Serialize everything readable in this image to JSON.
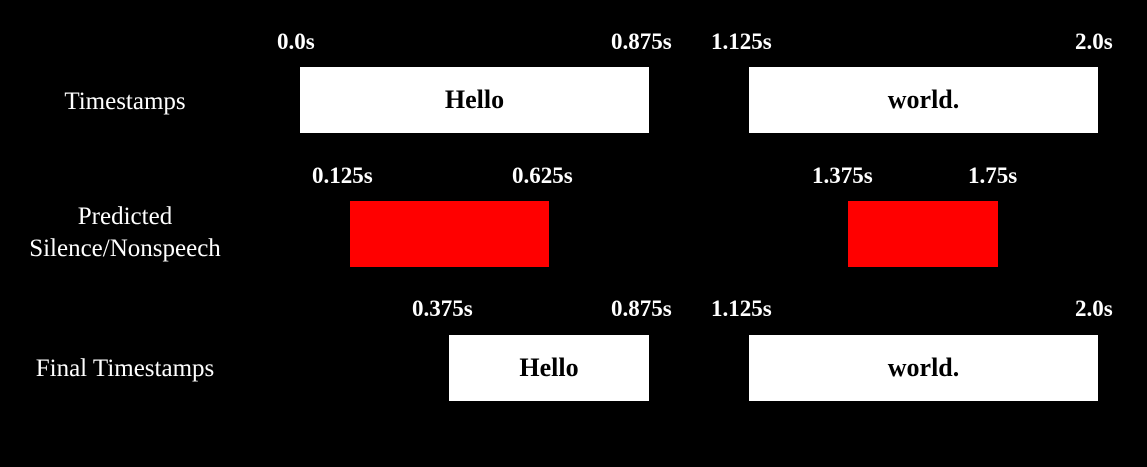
{
  "colors": {
    "background": "#000000",
    "word_block": "#ffffff",
    "silence_block": "#ff0000",
    "text_on_dark": "#ffffff",
    "text_on_block": "#000000"
  },
  "rows": [
    {
      "label": "Timestamps",
      "blocks": [
        {
          "kind": "word",
          "text": "Hello",
          "start_label": "0.0s",
          "end_label": "0.875s"
        },
        {
          "kind": "word",
          "text": "world.",
          "start_label": "1.125s",
          "end_label": "2.0s"
        }
      ]
    },
    {
      "label": "Predicted\nSilence/Nonspeech",
      "blocks": [
        {
          "kind": "silence",
          "text": "",
          "start_label": "0.125s",
          "end_label": "0.625s"
        },
        {
          "kind": "silence",
          "text": "",
          "start_label": "1.375s",
          "end_label": "1.75s"
        }
      ]
    },
    {
      "label": "Final Timestamps",
      "blocks": [
        {
          "kind": "word",
          "text": "Hello",
          "start_label": "0.375s",
          "end_label": "0.875s"
        },
        {
          "kind": "word",
          "text": "world.",
          "start_label": "1.125s",
          "end_label": "2.0s"
        }
      ]
    }
  ]
}
